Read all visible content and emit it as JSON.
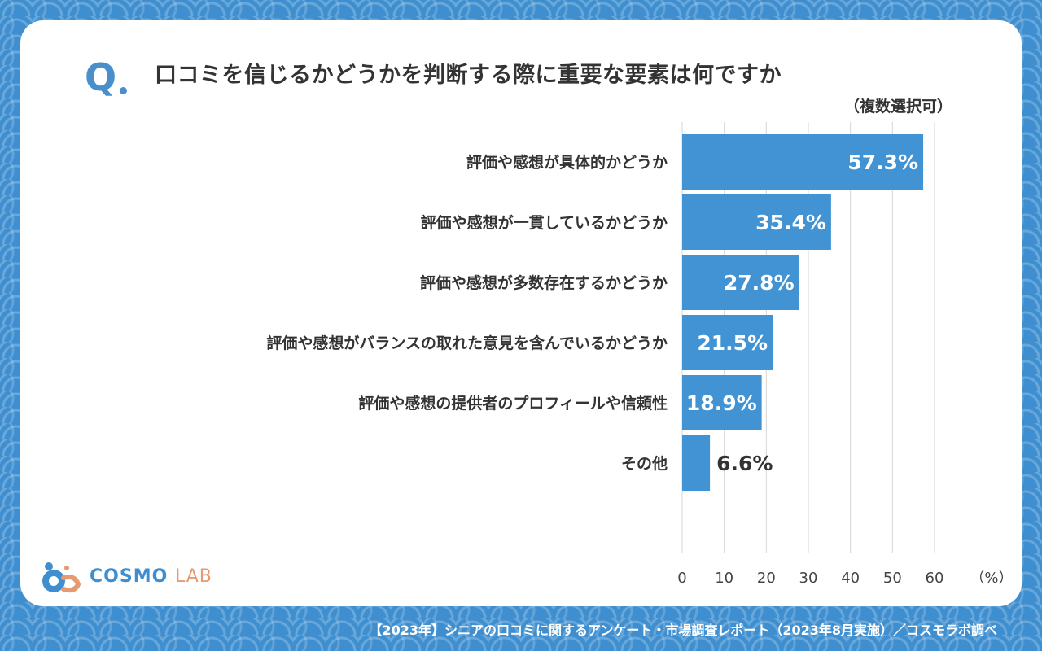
{
  "question": {
    "mark": "Q",
    "title": "口コミを信じるかどうかを判断する際に重要な要素は何ですか",
    "note": "（複数選択可）"
  },
  "chart_data": {
    "type": "bar",
    "orientation": "horizontal",
    "categories": [
      "評価や感想が具体的かどうか",
      "評価や感想が一貫しているかどうか",
      "評価や感想が多数存在するかどうか",
      "評価や感想がバランスの取れた意見を含んでいるかどうか",
      "評価や感想の提供者のプロフィールや信頼性",
      "その他"
    ],
    "values": [
      57.3,
      35.4,
      27.8,
      21.5,
      18.9,
      6.6
    ],
    "value_labels": [
      "57.3%",
      "35.4%",
      "27.8%",
      "21.5%",
      "18.9%",
      "6.6%"
    ],
    "xlim": [
      0,
      60
    ],
    "ticks": [
      0,
      10,
      20,
      30,
      40,
      50,
      60
    ],
    "unit_label": "（%）",
    "grid": true,
    "bar_color": "#4193d3"
  },
  "logo": {
    "cosmo": "COSMO",
    "lab": "LAB"
  },
  "footer": "【2023年】シニアの口コミに関するアンケート・市場調査レポート（2023年8月実施）／コスモラボ調べ",
  "colors": {
    "background": "#3f8fd0",
    "accent": "#4a8fcb",
    "text": "#333333",
    "logo_orange": "#e59a6f"
  }
}
